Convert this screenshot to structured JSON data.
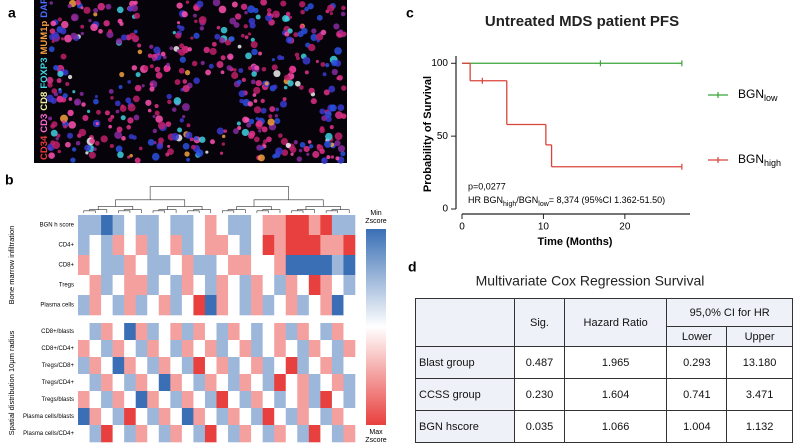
{
  "panel_labels": [
    "a",
    "b",
    "c",
    "d"
  ],
  "panel_a": {
    "markers": [
      {
        "text": "CD34",
        "color": "#f03c3c"
      },
      {
        "text": "CD3",
        "color": "#ff6ad5"
      },
      {
        "text": "CD8",
        "color": "#f5f0a0"
      },
      {
        "text": "FOXP3",
        "color": "#3fd6e6"
      },
      {
        "text": "MUM1p",
        "color": "#f5a040"
      },
      {
        "text": "DAPI",
        "color": "#4a6cff"
      }
    ]
  },
  "heatmap": {
    "groups": [
      {
        "label": "Bone marrow infiltration",
        "rows": [
          "BGN h score",
          "CD4+",
          "CD8+",
          "Tregs",
          "Plasma cells"
        ],
        "values": [
          [
            -1,
            -1,
            -2,
            -1,
            0,
            -1,
            -1,
            0,
            -1,
            -1,
            0,
            1,
            0,
            -1,
            -1,
            0,
            1,
            1,
            2,
            2,
            1,
            2,
            -1,
            -1
          ],
          [
            -1,
            0,
            -1,
            1,
            0,
            1,
            -1,
            0,
            1,
            -1,
            0,
            1,
            1,
            0,
            -1,
            0,
            2,
            1,
            2,
            2,
            2,
            1,
            1,
            2
          ],
          [
            1,
            0,
            -1,
            -1,
            1,
            0,
            -1,
            -1,
            0,
            1,
            -1,
            -1,
            0,
            1,
            1,
            0,
            0,
            1,
            -2,
            -2,
            -2,
            -2,
            -1,
            -2
          ],
          [
            0,
            1,
            -1,
            0,
            1,
            1,
            -1,
            0,
            -1,
            1,
            0,
            -1,
            1,
            0,
            -1,
            1,
            0,
            -1,
            1,
            0,
            2,
            1,
            0,
            -1
          ],
          [
            -1,
            1,
            0,
            -1,
            1,
            -1,
            0,
            1,
            -1,
            0,
            2,
            -2,
            1,
            0,
            -1,
            1,
            -1,
            0,
            1,
            -1,
            0,
            1,
            -2,
            0
          ]
        ]
      },
      {
        "label": "Spatial distribution 10μm radius",
        "rows": [
          "CD8+/blasts",
          "CD8+/CD4+",
          "Tregs/CD8+",
          "Tregs/CD4+",
          "Tregs/blasts",
          "Plasma cells/blasts",
          "Plasma cells/CD4+"
        ],
        "values": [
          [
            0,
            -1,
            1,
            0,
            -2,
            1,
            -1,
            0,
            1,
            -1,
            1,
            0,
            -1,
            1,
            0,
            -1,
            0,
            1,
            -1,
            1,
            0,
            -1,
            1,
            0
          ],
          [
            1,
            0,
            -1,
            1,
            0,
            -1,
            1,
            0,
            -1,
            1,
            0,
            1,
            -1,
            0,
            1,
            -1,
            0,
            1,
            0,
            -1,
            1,
            0,
            -1,
            1
          ],
          [
            -1,
            1,
            0,
            -2,
            1,
            0,
            -1,
            1,
            0,
            -1,
            2,
            0,
            1,
            -1,
            0,
            1,
            -1,
            0,
            2,
            -1,
            0,
            1,
            -1,
            0
          ],
          [
            0,
            -1,
            1,
            0,
            -1,
            1,
            0,
            -2,
            1,
            0,
            -1,
            1,
            0,
            -1,
            1,
            0,
            -1,
            2,
            0,
            1,
            -1,
            0,
            1,
            -1
          ],
          [
            1,
            0,
            -1,
            1,
            0,
            -2,
            1,
            0,
            -1,
            1,
            0,
            -1,
            2,
            0,
            -1,
            1,
            0,
            -1,
            0,
            1,
            -1,
            2,
            0,
            -1
          ],
          [
            -2,
            1,
            0,
            -1,
            2,
            0,
            -1,
            1,
            0,
            -2,
            1,
            0,
            -1,
            1,
            0,
            -1,
            2,
            0,
            -1,
            1,
            0,
            -1,
            1,
            0
          ],
          [
            0,
            -1,
            2,
            0,
            -1,
            1,
            0,
            -1,
            1,
            0,
            -1,
            2,
            0,
            -1,
            1,
            0,
            -1,
            1,
            0,
            -1,
            2,
            0,
            -1,
            1
          ]
        ]
      }
    ],
    "legend": {
      "min": [
        "Min",
        "Zscore"
      ],
      "max": [
        "Max",
        "Zscore"
      ]
    }
  },
  "chart_data": {
    "type": "step",
    "title": "Untreated MDS patient PFS",
    "x_label": "Time (Months)",
    "y_label": "Probability of Survival",
    "xlim": [
      0,
      28
    ],
    "xticks": [
      0,
      10,
      20
    ],
    "ylim": [
      0,
      105
    ],
    "yticks": [
      0,
      50,
      100
    ],
    "series": [
      {
        "name": "BGN",
        "name_sub": "low",
        "color": "#3aa53a",
        "x": [
          0,
          27
        ],
        "values": [
          100,
          100
        ],
        "censored": {
          "x": [
            17,
            27
          ],
          "values": [
            100,
            100
          ]
        }
      },
      {
        "name": "BGN",
        "name_sub": "high",
        "color": "#d9443a",
        "x": [
          0,
          1,
          5.5,
          10.3,
          11,
          27
        ],
        "values": [
          100,
          88,
          58,
          44,
          29,
          29
        ],
        "censored": {
          "x": [
            2.5,
            27
          ],
          "values": [
            88,
            29
          ]
        }
      }
    ],
    "annotations": {
      "p_value": "p=0,0277",
      "hr": [
        "HR BGN",
        "high",
        "/BGN",
        "low",
        "= 8,374 (95%CI 1.362-51.50)"
      ]
    }
  },
  "table": {
    "title": "Multivariate Cox Regression Survival",
    "columns": [
      "Sig.",
      "Hazard Ratio"
    ],
    "ci_header": "95,0% CI for HR",
    "ci_columns": [
      "Lower",
      "Upper"
    ],
    "rows": [
      [
        "Blast group",
        "0.487",
        "1.965",
        "0.293",
        "13.180"
      ],
      [
        "CCSS group",
        "0.230",
        "1.604",
        "0.741",
        "3.471"
      ],
      [
        "BGN hscore",
        "0.035",
        "1.066",
        "1.004",
        "1.132"
      ]
    ]
  }
}
